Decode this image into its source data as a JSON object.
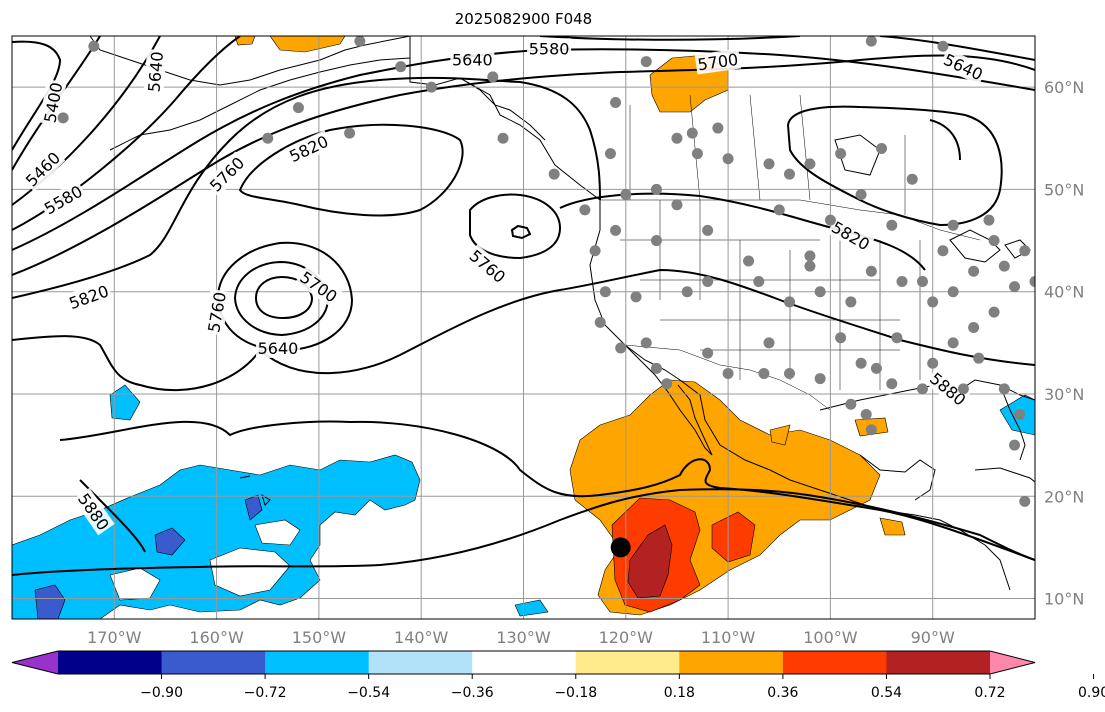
{
  "title": "2025082900 F048",
  "map": {
    "lon_range": [
      -180,
      -80
    ],
    "lat_range": [
      8,
      65
    ],
    "grid_lons": [
      -170,
      -160,
      -150,
      -140,
      -130,
      -120,
      -110,
      -100,
      -90
    ],
    "grid_lats": [
      10,
      20,
      30,
      40,
      50,
      60
    ],
    "lon_labels": [
      "170°W",
      "160°W",
      "150°W",
      "140°W",
      "130°W",
      "120°W",
      "110°W",
      "100°W",
      "90°W"
    ],
    "lat_labels": [
      "10°N",
      "20°N",
      "30°N",
      "40°N",
      "50°N",
      "60°N"
    ],
    "contour_labels": [
      {
        "text": "5640",
        "lon": -166,
        "lat": 61.5,
        "rot": -85
      },
      {
        "text": "5400",
        "lon": -176,
        "lat": 58.5,
        "rot": -80
      },
      {
        "text": "5460",
        "lon": -177,
        "lat": 52,
        "rot": -45
      },
      {
        "text": "5580",
        "lon": -175,
        "lat": 49,
        "rot": -30
      },
      {
        "text": "5580",
        "lon": -127.5,
        "lat": 63.8,
        "rot": 0
      },
      {
        "text": "5640",
        "lon": -135,
        "lat": 62.7,
        "rot": 0
      },
      {
        "text": "5700",
        "lon": -111,
        "lat": 62.5,
        "rot": -8
      },
      {
        "text": "5640",
        "lon": -87,
        "lat": 62,
        "rot": 25
      },
      {
        "text": "5820",
        "lon": -151,
        "lat": 54,
        "rot": -25
      },
      {
        "text": "5760",
        "lon": -159,
        "lat": 51.5,
        "rot": -45
      },
      {
        "text": "5820",
        "lon": -172.5,
        "lat": 39.5,
        "rot": -20
      },
      {
        "text": "5760",
        "lon": -160,
        "lat": 38,
        "rot": -80
      },
      {
        "text": "5700",
        "lon": -150,
        "lat": 40.5,
        "rot": 35
      },
      {
        "text": "5640",
        "lon": -154,
        "lat": 34.5,
        "rot": 0
      },
      {
        "text": "5760",
        "lon": -133.5,
        "lat": 42.5,
        "rot": 40
      },
      {
        "text": "5820",
        "lon": -98,
        "lat": 45.5,
        "rot": 30
      },
      {
        "text": "5880",
        "lon": -88.5,
        "lat": 30.5,
        "rot": 40
      },
      {
        "text": "5880",
        "lon": -172,
        "lat": 18.5,
        "rot": 55
      }
    ],
    "station_points": [
      [
        -146,
        64.5
      ],
      [
        -172,
        64
      ],
      [
        -142,
        62
      ],
      [
        -133,
        61
      ],
      [
        -118,
        62.5
      ],
      [
        -175,
        57
      ],
      [
        -152,
        58
      ],
      [
        -155,
        55
      ],
      [
        -139,
        60
      ],
      [
        -96,
        64.5
      ],
      [
        -89,
        64
      ],
      [
        -147,
        55.5
      ],
      [
        -127,
        51.5
      ],
      [
        -132,
        55
      ],
      [
        -121,
        58.5
      ],
      [
        -121.5,
        53.5
      ],
      [
        -115,
        55
      ],
      [
        -113,
        53.5
      ],
      [
        -110,
        53
      ],
      [
        -106,
        52.5
      ],
      [
        -104,
        51.5
      ],
      [
        -102,
        52.5
      ],
      [
        -99,
        53.5
      ],
      [
        -95,
        54
      ],
      [
        -92,
        51
      ],
      [
        -113.5,
        55.5
      ],
      [
        -111,
        56
      ],
      [
        -117,
        50
      ],
      [
        -120,
        49.5
      ],
      [
        -124,
        48
      ],
      [
        -115,
        48.5
      ],
      [
        -112,
        46
      ],
      [
        -105,
        48
      ],
      [
        -97,
        49.5
      ],
      [
        -100,
        47
      ],
      [
        -121,
        46
      ],
      [
        -117,
        45
      ],
      [
        -123,
        44
      ],
      [
        -108,
        43
      ],
      [
        -102,
        42.5
      ],
      [
        -96,
        42
      ],
      [
        -93,
        41
      ],
      [
        -98,
        39
      ],
      [
        -101,
        40
      ],
      [
        -104,
        39
      ],
      [
        -107,
        41
      ],
      [
        -112,
        41
      ],
      [
        -114,
        40
      ],
      [
        -119,
        39.5
      ],
      [
        -122,
        40
      ],
      [
        -122.5,
        37
      ],
      [
        -118,
        35
      ],
      [
        -112,
        34
      ],
      [
        -106,
        35
      ],
      [
        -99,
        35.5
      ],
      [
        -97,
        33
      ],
      [
        -95.5,
        32.5
      ],
      [
        -93.5,
        35.5
      ],
      [
        -90,
        33
      ],
      [
        -88,
        35
      ],
      [
        -86,
        36.5
      ],
      [
        -84,
        38
      ],
      [
        -82,
        40.5
      ],
      [
        -80,
        41
      ],
      [
        -83,
        42.5
      ],
      [
        -86,
        42
      ],
      [
        -88,
        40
      ],
      [
        -90,
        39
      ],
      [
        -91,
        41
      ],
      [
        -85.5,
        33.5
      ],
      [
        -83,
        30.5
      ],
      [
        -87,
        30.5
      ],
      [
        -91,
        30.5
      ],
      [
        -94,
        31
      ],
      [
        -98,
        29
      ],
      [
        -101,
        31.5
      ],
      [
        -104,
        32
      ],
      [
        -106.5,
        32
      ],
      [
        -110,
        32
      ],
      [
        -117,
        32.5
      ],
      [
        -120.5,
        34.5
      ],
      [
        -116,
        31
      ],
      [
        -96,
        26.5
      ],
      [
        -96.5,
        28
      ],
      [
        -82,
        25
      ],
      [
        -81.5,
        28
      ],
      [
        -81,
        19.5
      ],
      [
        -102,
        43.5
      ],
      [
        -94,
        46.5
      ],
      [
        -89,
        44
      ],
      [
        -88,
        46.5
      ],
      [
        -84,
        45
      ],
      [
        -81,
        44
      ],
      [
        -84.5,
        47
      ]
    ],
    "hurricane": {
      "lon": -120.5,
      "lat": 15
    }
  },
  "colorbar": {
    "ticks": [
      "−0.90",
      "−0.72",
      "−0.54",
      "−0.36",
      "−0.18",
      "0.18",
      "0.36",
      "0.54",
      "0.72",
      "0.90"
    ],
    "colors": [
      "#9932cc",
      "#00008b",
      "#3a5bcd",
      "#00bfff",
      "#b2e2fa",
      "#ffffff",
      "#ffea8c",
      "#ffa500",
      "#ff3c00",
      "#b22222",
      "#ff88aa"
    ]
  }
}
